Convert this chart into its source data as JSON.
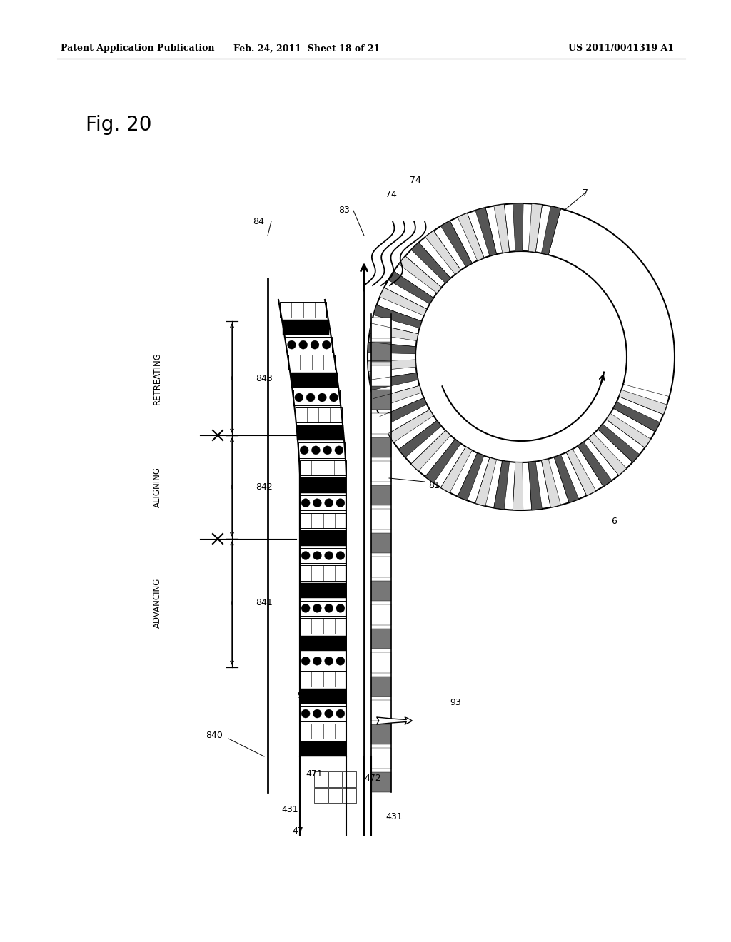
{
  "title": "Fig. 20",
  "header_left": "Patent Application Publication",
  "header_mid": "Feb. 24, 2011  Sheet 18 of 21",
  "header_right": "US 2011/0041319 A1",
  "bg_color": "#ffffff",
  "text_color": "#000000"
}
